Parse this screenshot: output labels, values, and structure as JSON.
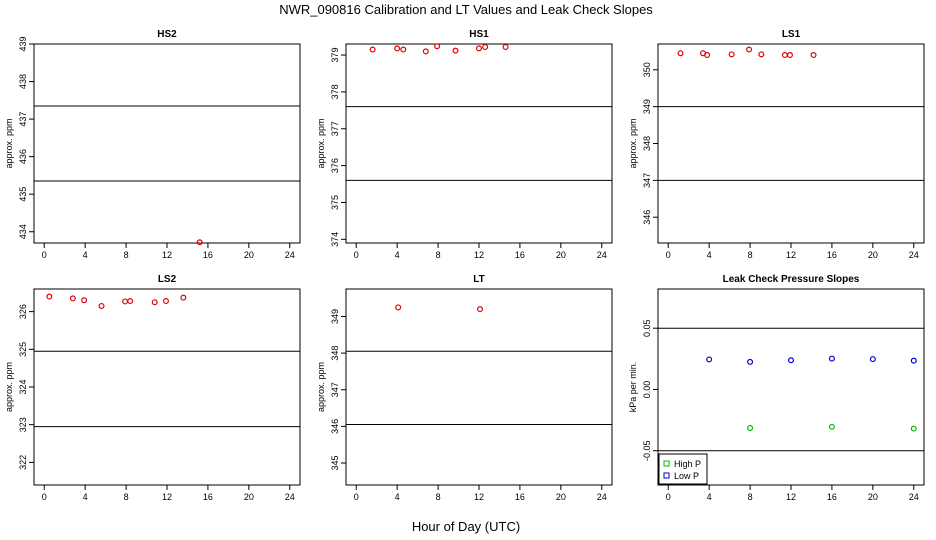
{
  "figure": {
    "title": "NWR_090816  Calibration and LT Values and Leak Check Slopes",
    "x_axis_title": "Hour of Day (UTC)"
  },
  "colors": {
    "calibration": "#dd0000",
    "high_p": "#00bb00",
    "low_p": "#0000cc"
  },
  "chart_data": [
    {
      "type": "scatter",
      "title": "HS2",
      "ylabel": "approx. ppm",
      "xlim": [
        -1,
        25
      ],
      "ylim": [
        433.7,
        439
      ],
      "x_ticks": [
        0,
        4,
        8,
        12,
        16,
        20,
        24
      ],
      "y_ticks": [
        434,
        435,
        436,
        437,
        438,
        439
      ],
      "hlines": [
        437.35,
        435.35
      ],
      "series": [
        {
          "color": "red",
          "points": [
            {
              "x": 15.2,
              "y": 433.72
            }
          ]
        }
      ]
    },
    {
      "type": "scatter",
      "title": "HS1",
      "ylabel": "approx. ppm",
      "xlim": [
        -1,
        25
      ],
      "ylim": [
        373.9,
        379.3
      ],
      "x_ticks": [
        0,
        4,
        8,
        12,
        16,
        20,
        24
      ],
      "y_ticks": [
        374,
        375,
        376,
        377,
        378,
        379
      ],
      "hlines": [
        377.6,
        375.6
      ],
      "series": [
        {
          "color": "red",
          "points": [
            {
              "x": 1.6,
              "y": 379.15
            },
            {
              "x": 4.0,
              "y": 379.18
            },
            {
              "x": 4.6,
              "y": 379.15
            },
            {
              "x": 6.8,
              "y": 379.1
            },
            {
              "x": 7.9,
              "y": 379.24
            },
            {
              "x": 9.7,
              "y": 379.12
            },
            {
              "x": 12.0,
              "y": 379.18
            },
            {
              "x": 12.6,
              "y": 379.22
            },
            {
              "x": 14.6,
              "y": 379.22
            }
          ]
        }
      ]
    },
    {
      "type": "scatter",
      "title": "LS1",
      "ylabel": "approx. ppm",
      "xlim": [
        -1,
        25
      ],
      "ylim": [
        345.3,
        350.7
      ],
      "x_ticks": [
        0,
        4,
        8,
        12,
        16,
        20,
        24
      ],
      "y_ticks": [
        346,
        347,
        348,
        349,
        350
      ],
      "hlines": [
        349.0,
        347.0
      ],
      "series": [
        {
          "color": "red",
          "points": [
            {
              "x": 1.2,
              "y": 350.45
            },
            {
              "x": 3.4,
              "y": 350.45
            },
            {
              "x": 3.8,
              "y": 350.4
            },
            {
              "x": 6.2,
              "y": 350.42
            },
            {
              "x": 7.9,
              "y": 350.55
            },
            {
              "x": 9.1,
              "y": 350.42
            },
            {
              "x": 11.4,
              "y": 350.4
            },
            {
              "x": 11.9,
              "y": 350.4
            },
            {
              "x": 14.2,
              "y": 350.4
            }
          ]
        }
      ]
    },
    {
      "type": "scatter",
      "title": "LS2",
      "ylabel": "approx. ppm",
      "xlim": [
        -1,
        25
      ],
      "ylim": [
        321.4,
        326.6
      ],
      "x_ticks": [
        0,
        4,
        8,
        12,
        16,
        20,
        24
      ],
      "y_ticks": [
        322,
        323,
        324,
        325,
        326
      ],
      "hlines": [
        324.95,
        322.95
      ],
      "series": [
        {
          "color": "red",
          "points": [
            {
              "x": 0.5,
              "y": 326.4
            },
            {
              "x": 2.8,
              "y": 326.35
            },
            {
              "x": 3.9,
              "y": 326.3
            },
            {
              "x": 5.6,
              "y": 326.15
            },
            {
              "x": 7.9,
              "y": 326.27
            },
            {
              "x": 8.4,
              "y": 326.28
            },
            {
              "x": 10.8,
              "y": 326.25
            },
            {
              "x": 11.9,
              "y": 326.28
            },
            {
              "x": 13.6,
              "y": 326.37
            }
          ]
        }
      ]
    },
    {
      "type": "scatter",
      "title": "LT",
      "ylabel": "approx. ppm",
      "xlim": [
        -1,
        25
      ],
      "ylim": [
        344.4,
        349.75
      ],
      "x_ticks": [
        0,
        4,
        8,
        12,
        16,
        20,
        24
      ],
      "y_ticks": [
        345,
        346,
        347,
        348,
        349
      ],
      "hlines": [
        348.05,
        346.05
      ],
      "series": [
        {
          "color": "red",
          "points": [
            {
              "x": 4.1,
              "y": 349.25
            },
            {
              "x": 12.1,
              "y": 349.2
            }
          ]
        }
      ]
    },
    {
      "type": "scatter",
      "title": "Leak Check Pressure Slopes",
      "ylabel": "kPa per min.",
      "xlim": [
        -1,
        25
      ],
      "ylim": [
        -0.078,
        0.082
      ],
      "x_ticks": [
        0,
        4,
        8,
        12,
        16,
        20,
        24
      ],
      "y_ticks": [
        -0.05,
        0.0,
        0.05
      ],
      "y_tick_labels": [
        "-0.05",
        "0.00",
        "0.05"
      ],
      "hlines": [
        0.05,
        -0.05
      ],
      "legend": {
        "position": "bottom-left",
        "entries": [
          "High P",
          "Low P"
        ]
      },
      "series": [
        {
          "name": "High P",
          "color": "green",
          "points": [
            {
              "x": 8,
              "y": -0.0315
            },
            {
              "x": 16,
              "y": -0.0305
            },
            {
              "x": 24,
              "y": -0.032
            }
          ]
        },
        {
          "name": "Low P",
          "color": "blue",
          "points": [
            {
              "x": 4,
              "y": 0.0245
            },
            {
              "x": 8,
              "y": 0.0225
            },
            {
              "x": 12,
              "y": 0.0238
            },
            {
              "x": 16,
              "y": 0.0252
            },
            {
              "x": 20,
              "y": 0.0248
            },
            {
              "x": 24,
              "y": 0.0235
            }
          ]
        }
      ]
    }
  ]
}
